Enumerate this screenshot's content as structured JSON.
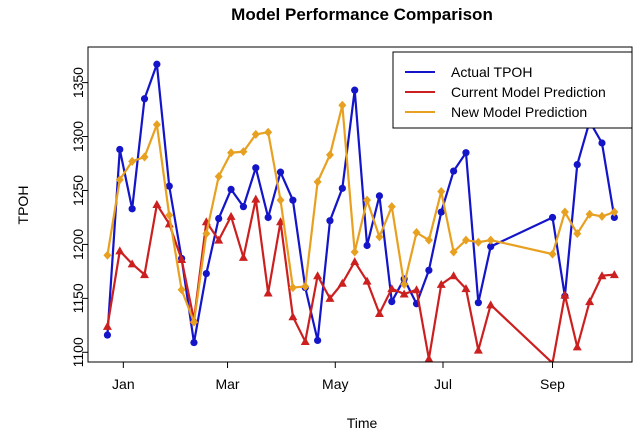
{
  "chart_data": {
    "type": "line",
    "title": "Model Performance Comparison",
    "x_label": "Time",
    "y_label": "TPOH",
    "x": [
      -8,
      -1,
      6,
      13,
      20,
      27,
      34,
      41,
      48,
      55,
      62,
      69,
      76,
      83,
      90,
      97,
      104,
      111,
      118,
      125,
      132,
      139,
      146,
      153,
      160,
      167,
      174,
      181,
      188,
      195,
      202,
      209,
      244,
      251,
      258,
      265,
      272,
      279
    ],
    "series": [
      {
        "name": "Actual TPOH",
        "color": "#1414c8",
        "marker": "circle",
        "values": [
          1116,
          1288,
          1233,
          1335,
          1367,
          1254,
          1187,
          1109,
          1173,
          1224,
          1251,
          1235,
          1271,
          1225,
          1267,
          1241,
          1160,
          1111,
          1222,
          1252,
          1343,
          1199,
          1245,
          1147,
          1168,
          1145,
          1176,
          1230,
          1268,
          1285,
          1146,
          1198,
          1225,
          1152,
          1274,
          1314,
          1294,
          1225
        ]
      },
      {
        "name": "Current Model Prediction",
        "color": "#cc2020",
        "marker": "triangle",
        "values": [
          1124,
          1194,
          1182,
          1172,
          1237,
          1219,
          1186,
          1130,
          1221,
          1204,
          1226,
          1188,
          1242,
          1155,
          1221,
          1133,
          1110,
          1171,
          1150,
          1164,
          1184,
          1166,
          1136,
          1159,
          1154,
          1158,
          1094,
          1163,
          1171,
          1159,
          1102,
          1144,
          1090,
          1153,
          1105,
          1147,
          1171,
          1172
        ]
      },
      {
        "name": "New Model Prediction",
        "color": "#e8a020",
        "marker": "diamond",
        "values": [
          1190,
          1260,
          1277,
          1281,
          1311,
          1227,
          1158,
          1128,
          1210,
          1263,
          1285,
          1286,
          1302,
          1304,
          1241,
          1160,
          1161,
          1258,
          1283,
          1329,
          1193,
          1241,
          1207,
          1235,
          1163,
          1211,
          1204,
          1249,
          1193,
          1204,
          1202,
          1204,
          1191,
          1230,
          1210,
          1228,
          1226,
          1230
        ]
      }
    ],
    "xlim": [
      -19,
      289
    ],
    "xticks": [
      {
        "value": 1,
        "label": "Jan"
      },
      {
        "value": 60,
        "label": "Mar"
      },
      {
        "value": 121,
        "label": "May"
      },
      {
        "value": 182,
        "label": "Jul"
      },
      {
        "value": 244,
        "label": "Sep"
      }
    ],
    "ylim": [
      1091,
      1383
    ],
    "yticks": [
      1100,
      1150,
      1200,
      1250,
      1300,
      1350
    ],
    "legend": "topright"
  }
}
